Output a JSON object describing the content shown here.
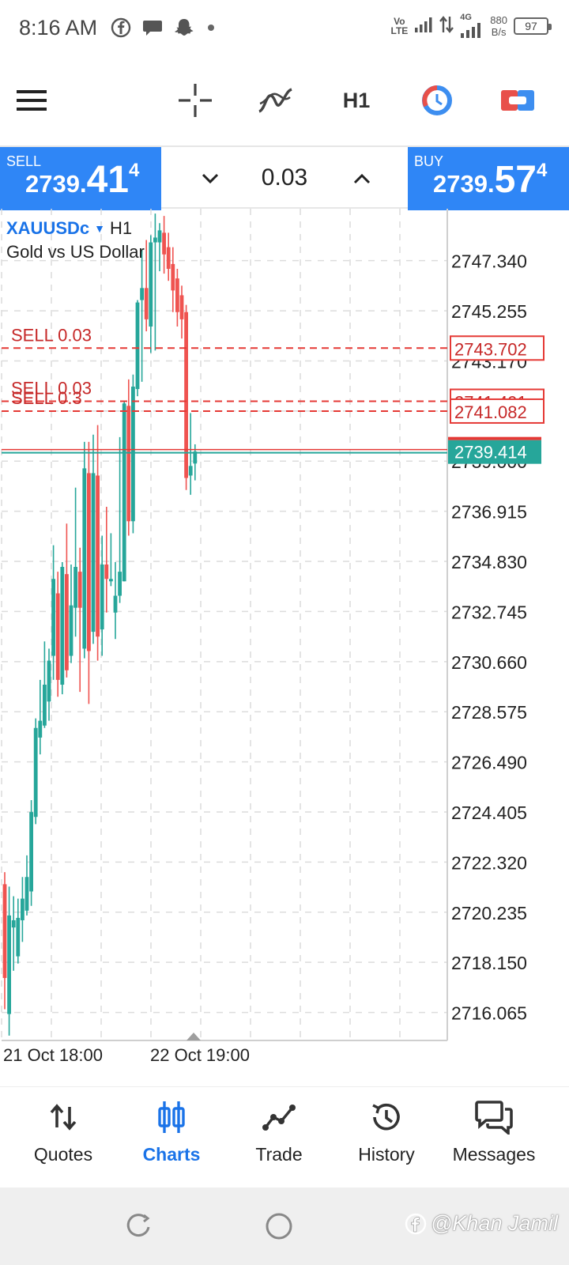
{
  "status_bar": {
    "time": "8:16 AM",
    "net_speed_value": "880",
    "net_speed_unit": "B/s",
    "battery": "97",
    "lte_top": "Vo",
    "lte_bottom": "LTE",
    "network_4g": "4G"
  },
  "toolbar": {
    "timeframe": "H1"
  },
  "trade_panel": {
    "sell": {
      "label": "SELL",
      "price_prefix": "2739.",
      "price_big": "41",
      "price_sup": "4"
    },
    "buy": {
      "label": "BUY",
      "price_prefix": "2739.",
      "price_big": "57",
      "price_sup": "4"
    },
    "volume": "0.03"
  },
  "chart": {
    "symbol": "XAUUSDc",
    "timeframe": "H1",
    "description": "Gold vs US Dollar"
  },
  "chart_data": {
    "type": "candlestick",
    "symbol": "XAUUSDc",
    "timeframe": "H1",
    "y_ticks": [
      "2747.340",
      "2745.255",
      "2743.170",
      "2741.085",
      "2739.000",
      "2736.915",
      "2734.830",
      "2732.745",
      "2730.660",
      "2728.575",
      "2726.490",
      "2724.405",
      "2722.320",
      "2720.235",
      "2718.150",
      "2716.065"
    ],
    "ylim": [
      2714.9,
      2749.5
    ],
    "x_ticks": [
      "21 Oct 18:00",
      "22 Oct 19:00"
    ],
    "current_bid": "2739.414",
    "orders": [
      {
        "label": "SELL 0.03",
        "price": "2743.702"
      },
      {
        "label": "SELL 0.03",
        "price": "2741.491"
      },
      {
        "label": "SELL 0.3",
        "price": "2741.082"
      }
    ],
    "candles": [
      {
        "o": 2721.4,
        "h": 2721.9,
        "l": 2716.2,
        "c": 2717.5
      },
      {
        "o": 2716.0,
        "h": 2721.3,
        "l": 2715.1,
        "c": 2720.1
      },
      {
        "o": 2719.6,
        "h": 2720.9,
        "l": 2717.8,
        "c": 2719.9
      },
      {
        "o": 2718.4,
        "h": 2720.8,
        "l": 2718.1,
        "c": 2720.0
      },
      {
        "o": 2719.9,
        "h": 2721.7,
        "l": 2719.0,
        "c": 2720.8
      },
      {
        "o": 2720.3,
        "h": 2722.6,
        "l": 2720.1,
        "c": 2721.7
      },
      {
        "o": 2721.1,
        "h": 2724.9,
        "l": 2720.5,
        "c": 2724.4
      },
      {
        "o": 2724.2,
        "h": 2728.3,
        "l": 2723.9,
        "c": 2727.9
      },
      {
        "o": 2727.5,
        "h": 2729.9,
        "l": 2726.8,
        "c": 2728.2
      },
      {
        "o": 2728.0,
        "h": 2731.5,
        "l": 2727.9,
        "c": 2729.7
      },
      {
        "o": 2729.0,
        "h": 2731.2,
        "l": 2728.2,
        "c": 2730.7
      },
      {
        "o": 2730.9,
        "h": 2735.5,
        "l": 2729.9,
        "c": 2734.1
      },
      {
        "o": 2733.5,
        "h": 2734.4,
        "l": 2729.2,
        "c": 2729.9
      },
      {
        "o": 2729.7,
        "h": 2734.8,
        "l": 2729.3,
        "c": 2734.6
      },
      {
        "o": 2734.3,
        "h": 2736.4,
        "l": 2730.0,
        "c": 2730.3
      },
      {
        "o": 2730.9,
        "h": 2734.7,
        "l": 2730.6,
        "c": 2733.0
      },
      {
        "o": 2732.9,
        "h": 2737.9,
        "l": 2731.7,
        "c": 2734.6
      },
      {
        "o": 2734.4,
        "h": 2735.4,
        "l": 2729.4,
        "c": 2732.9
      },
      {
        "o": 2731.2,
        "h": 2739.8,
        "l": 2730.8,
        "c": 2738.7
      },
      {
        "o": 2738.5,
        "h": 2739.8,
        "l": 2728.9,
        "c": 2731.1
      },
      {
        "o": 2731.9,
        "h": 2740.1,
        "l": 2731.4,
        "c": 2738.5
      },
      {
        "o": 2738.4,
        "h": 2740.5,
        "l": 2730.7,
        "c": 2731.7
      },
      {
        "o": 2732.0,
        "h": 2735.9,
        "l": 2730.9,
        "c": 2734.7
      },
      {
        "o": 2734.7,
        "h": 2737.1,
        "l": 2732.7,
        "c": 2734.1
      },
      {
        "o": 2734.0,
        "h": 2736.0,
        "l": 2733.8,
        "c": 2734.1
      },
      {
        "o": 2732.7,
        "h": 2734.8,
        "l": 2731.6,
        "c": 2733.4
      },
      {
        "o": 2733.4,
        "h": 2740.0,
        "l": 2733.1,
        "c": 2734.4
      },
      {
        "o": 2734.0,
        "h": 2741.5,
        "l": 2734.0,
        "c": 2741.4
      },
      {
        "o": 2741.3,
        "h": 2742.4,
        "l": 2735.9,
        "c": 2736.5
      },
      {
        "o": 2736.5,
        "h": 2742.6,
        "l": 2736.0,
        "c": 2742.1
      },
      {
        "o": 2742.0,
        "h": 2745.7,
        "l": 2741.7,
        "c": 2745.6
      },
      {
        "o": 2745.7,
        "h": 2747.8,
        "l": 2742.3,
        "c": 2746.2
      },
      {
        "o": 2746.2,
        "h": 2748.2,
        "l": 2744.4,
        "c": 2744.9
      },
      {
        "o": 2744.6,
        "h": 2748.4,
        "l": 2743.5,
        "c": 2748.1
      },
      {
        "o": 2748.1,
        "h": 2749.3,
        "l": 2743.6,
        "c": 2748.3
      },
      {
        "o": 2748.1,
        "h": 2748.9,
        "l": 2746.9,
        "c": 2748.6
      },
      {
        "o": 2748.5,
        "h": 2749.2,
        "l": 2746.8,
        "c": 2747.6
      },
      {
        "o": 2747.9,
        "h": 2748.5,
        "l": 2746.5,
        "c": 2747.0
      },
      {
        "o": 2747.2,
        "h": 2747.9,
        "l": 2745.2,
        "c": 2746.1
      },
      {
        "o": 2746.6,
        "h": 2747.0,
        "l": 2744.6,
        "c": 2745.2
      },
      {
        "o": 2745.9,
        "h": 2746.3,
        "l": 2744.1,
        "c": 2744.9
      },
      {
        "o": 2745.2,
        "h": 2745.5,
        "l": 2737.8,
        "c": 2738.3
      },
      {
        "o": 2738.4,
        "h": 2741.0,
        "l": 2737.6,
        "c": 2738.8
      },
      {
        "o": 2738.9,
        "h": 2739.7,
        "l": 2738.2,
        "c": 2739.4
      }
    ],
    "bull_color": "#26a69a",
    "bear_color": "#ef5350"
  },
  "bottom_nav": [
    {
      "label": "Quotes",
      "icon": "quotes-arrows-icon"
    },
    {
      "label": "Charts",
      "icon": "charts-candles-icon",
      "active": true
    },
    {
      "label": "Trade",
      "icon": "trade-line-icon"
    },
    {
      "label": "History",
      "icon": "history-clock-icon"
    },
    {
      "label": "Messages",
      "icon": "messages-chat-icon"
    }
  ],
  "watermark": "@Khan Jamil",
  "colors": {
    "accent": "#2f86f6",
    "active_nav": "#1a73e8",
    "order_red": "#d32f2f"
  }
}
